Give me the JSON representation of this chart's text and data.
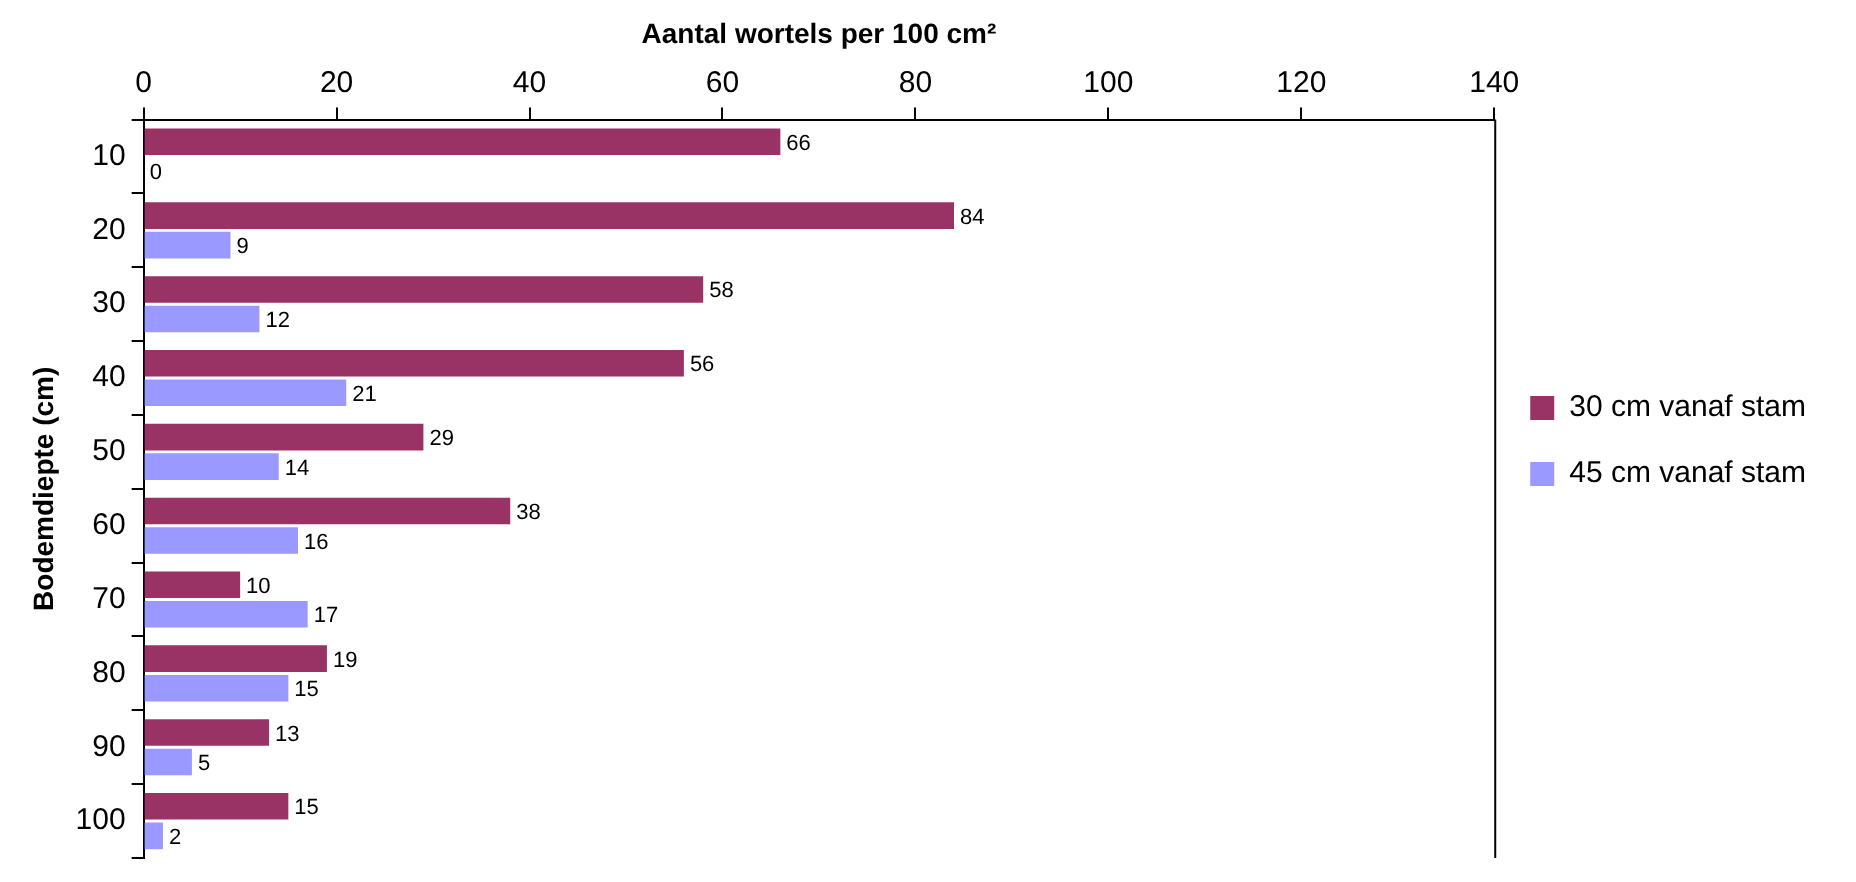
{
  "chart_data": {
    "type": "bar",
    "orientation": "horizontal",
    "xlabel": "Aantal wortels per 100 cm²",
    "ylabel": "Bodemdiepte (cm)",
    "categories": [
      "10",
      "20",
      "30",
      "40",
      "50",
      "60",
      "70",
      "80",
      "90",
      "100"
    ],
    "series": [
      {
        "name": "30 cm vanaf stam",
        "color": "#993366",
        "values": [
          66,
          84,
          58,
          56,
          29,
          38,
          10,
          19,
          13,
          15
        ]
      },
      {
        "name": "45 cm vanaf stam",
        "color": "#9999ff",
        "values": [
          0,
          9,
          12,
          21,
          14,
          16,
          17,
          15,
          5,
          2
        ]
      }
    ],
    "xlim": [
      0,
      140
    ],
    "xticks": [
      0,
      20,
      40,
      60,
      80,
      100,
      120,
      140
    ],
    "grid": false,
    "legend": "right",
    "data_labels": true
  }
}
